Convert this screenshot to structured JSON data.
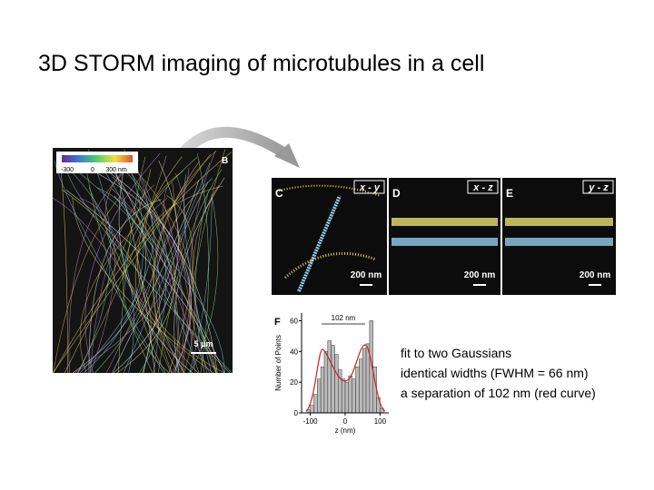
{
  "title": "3D  STORM imaging of  microtubules in a cell",
  "panel_b": {
    "label": "B",
    "colorbar_ticks": [
      "-300",
      "0",
      "300 nm"
    ],
    "scale_bar": "5 μm"
  },
  "panels": [
    {
      "label": "C",
      "view": "x - y",
      "scale_bar": "200 nm"
    },
    {
      "label": "D",
      "view": "x - z",
      "scale_bar": "200 nm"
    },
    {
      "label": "E",
      "view": "y - z",
      "scale_bar": "200 nm"
    }
  ],
  "histogram": {
    "type": "bar",
    "label": "F",
    "annotation": "102 nm",
    "ylabel": "Number of Points",
    "xlabel": "z (nm)",
    "bins": [
      -110,
      -100,
      -90,
      -80,
      -70,
      -60,
      -50,
      -40,
      -30,
      -20,
      -10,
      0,
      10,
      20,
      30,
      40,
      50,
      60,
      70,
      80,
      90,
      100,
      110
    ],
    "values": [
      2,
      5,
      12,
      22,
      30,
      40,
      47,
      44,
      38,
      28,
      22,
      20,
      24,
      22,
      30,
      35,
      42,
      45,
      60,
      30,
      10,
      3
    ],
    "color": "#bbbbbb",
    "xlim": [
      -125,
      125
    ],
    "xticks": [
      -100,
      0,
      100
    ],
    "ylim": [
      0,
      65
    ],
    "yticks": [
      0,
      20,
      40,
      60
    ]
  },
  "caption": [
    "fit to two Gaussians",
    "identical widths (FWHM = 66 nm)",
    "a  separation of 102 nm (red curve)"
  ]
}
